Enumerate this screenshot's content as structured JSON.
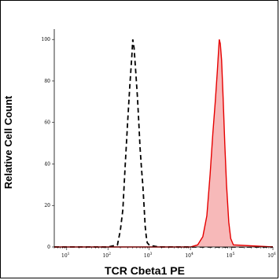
{
  "chart_data": {
    "type": "area",
    "title": "",
    "xlabel": "TCR Cbeta1 PE",
    "ylabel": "Relative Cell Count",
    "x_scale": "log",
    "xlim": [
      5,
      1000000
    ],
    "ylim": [
      0,
      105
    ],
    "grid": false,
    "x_tick_labels": [
      {
        "value": 10,
        "base": "10",
        "exp": "1"
      },
      {
        "value": 100,
        "base": "10",
        "exp": "2"
      },
      {
        "value": 1000,
        "base": "10",
        "exp": "3"
      },
      {
        "value": 10000,
        "base": "10",
        "exp": "4"
      },
      {
        "value": 100000,
        "base": "10",
        "exp": "5"
      },
      {
        "value": 1000000,
        "base": "10",
        "exp": "6"
      }
    ],
    "y_ticks": [
      0,
      20,
      40,
      60,
      80,
      100
    ],
    "series": [
      {
        "style": "dashed",
        "color": "#000000",
        "x": [
          5,
          100,
          170,
          200,
          230,
          260,
          300,
          340,
          380,
          400,
          430,
          470,
          520,
          560,
          600,
          650,
          700,
          750,
          800,
          850,
          900,
          1000,
          1100,
          1300,
          1500,
          2000,
          1000000
        ],
        "y": [
          0,
          0,
          1,
          8,
          18,
          38,
          60,
          78,
          92,
          100,
          96,
          85,
          72,
          60,
          48,
          38,
          30,
          20,
          10,
          5,
          2,
          1,
          0.6,
          0.4,
          0.2,
          0,
          0
        ]
      },
      {
        "style": "filled",
        "color": "#e60000",
        "fill": "#f7b9b9",
        "x": [
          5,
          10000,
          15000,
          20000,
          25000,
          30000,
          35000,
          40000,
          45000,
          50000,
          53000,
          57000,
          62000,
          68000,
          75000,
          85000,
          95000,
          110000,
          1000000
        ],
        "y": [
          0,
          0,
          1,
          5,
          15,
          35,
          55,
          70,
          85,
          100,
          98,
          90,
          72,
          50,
          30,
          12,
          4,
          1,
          0
        ]
      }
    ]
  }
}
